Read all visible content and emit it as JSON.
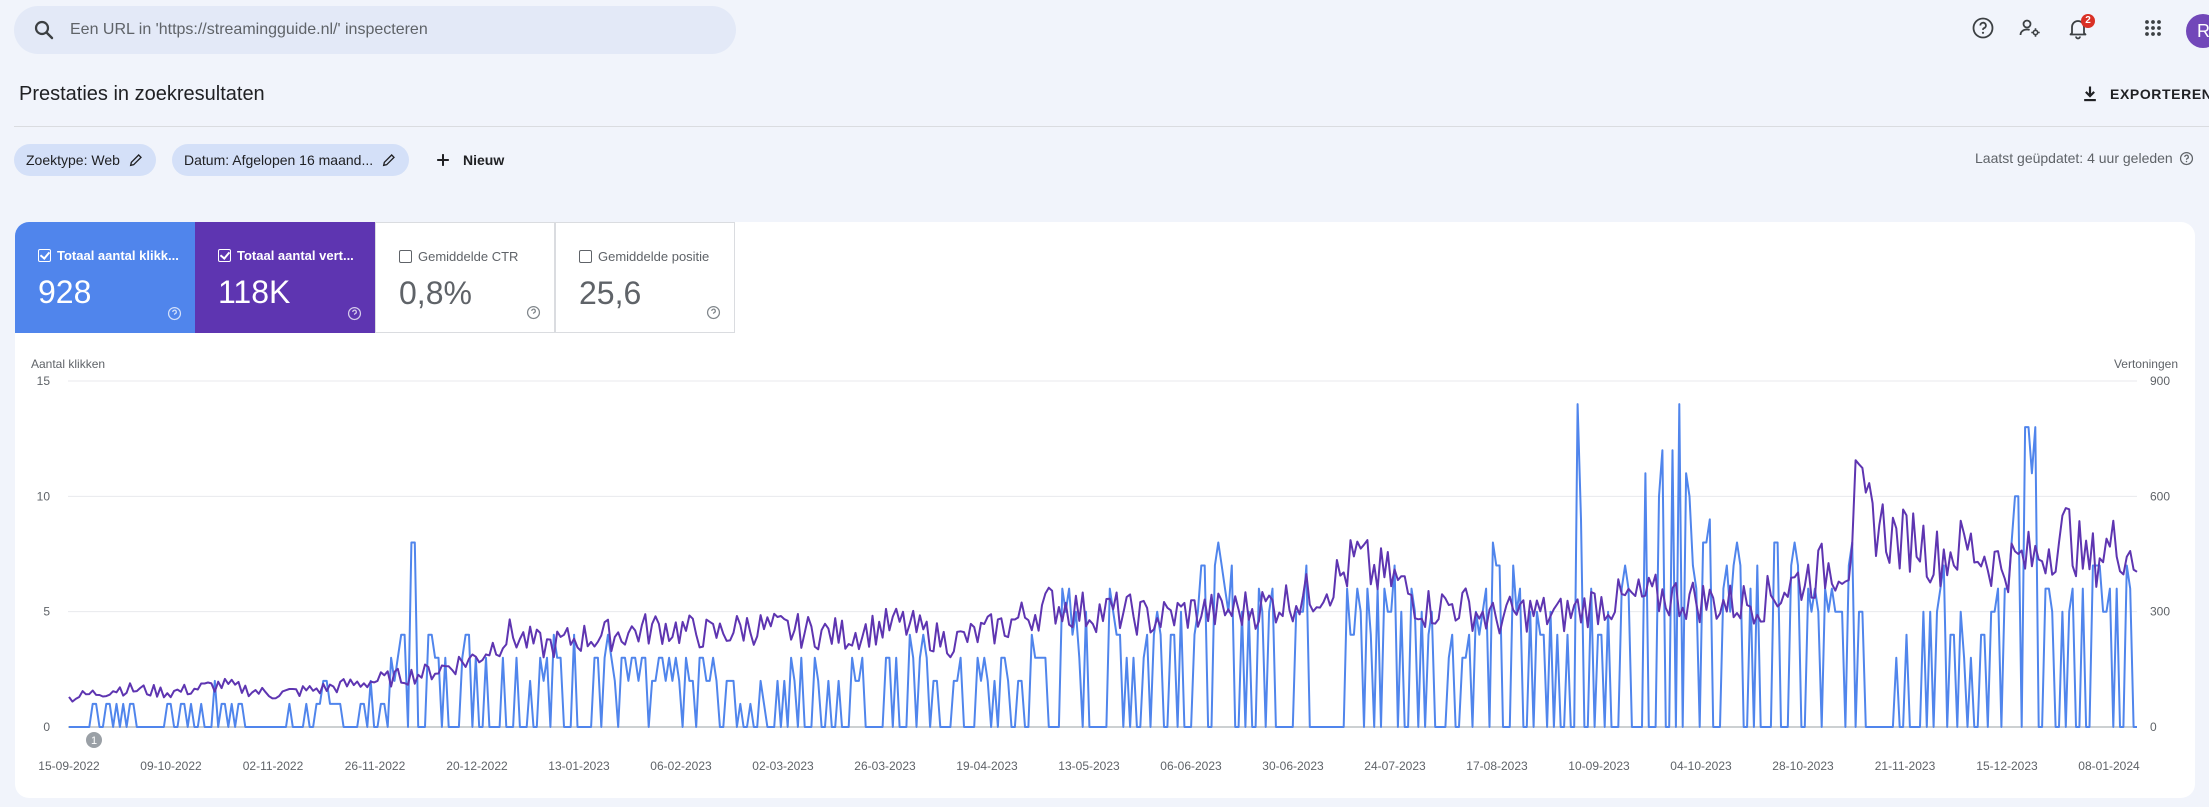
{
  "search": {
    "placeholder": "Een URL in 'https://streamingguide.nl/' inspecteren"
  },
  "header": {
    "notifications_count": "2",
    "avatar_letter": "R"
  },
  "page": {
    "title": "Prestaties in zoekresultaten",
    "export_label": "EXPORTEREN"
  },
  "filters": {
    "chips": [
      {
        "label": "Zoektype: Web"
      },
      {
        "label": "Datum: Afgelopen 16 maand..."
      }
    ],
    "new_label": "Nieuw",
    "updated": "Laatst geüpdatet: 4 uur geleden"
  },
  "metrics": [
    {
      "label": "Totaal aantal klikk...",
      "value": "928",
      "color": "#5085ec",
      "checked": true
    },
    {
      "label": "Totaal aantal vert...",
      "value": "118K",
      "color": "#5e35b1",
      "checked": true
    },
    {
      "label": "Gemiddelde CTR",
      "value": "0,8%",
      "checked": false
    },
    {
      "label": "Gemiddelde positie",
      "value": "25,6",
      "checked": false
    }
  ],
  "annotation_marker": "1",
  "chart_data": {
    "type": "line",
    "y_left_label": "Aantal klikken",
    "y_right_label": "Vertoningen",
    "y_left_ticks": [
      "15",
      "10",
      "5",
      "0"
    ],
    "y_right_ticks": [
      "900",
      "600",
      "300",
      "0"
    ],
    "ylim_left": [
      0,
      15
    ],
    "ylim_right": [
      0,
      900
    ],
    "grid": true,
    "x_tick_labels": [
      "15-09-2022",
      "09-10-2022",
      "02-11-2022",
      "26-11-2022",
      "20-12-2022",
      "13-01-2023",
      "06-02-2023",
      "02-03-2023",
      "26-03-2023",
      "19-04-2023",
      "13-05-2023",
      "06-06-2023",
      "30-06-2023",
      "24-07-2023",
      "17-08-2023",
      "10-09-2023",
      "04-10-2023",
      "28-10-2023",
      "21-11-2023",
      "15-12-2023",
      "08-01-2024"
    ],
    "series": [
      {
        "name": "Totaal aantal klikken",
        "axis": "left",
        "color": "#5085ec",
        "anchors_day_value": [
          [
            0,
            0
          ],
          [
            15,
            1
          ],
          [
            24,
            0
          ],
          [
            34,
            1
          ],
          [
            48,
            1
          ],
          [
            60,
            0
          ],
          [
            73,
            1
          ],
          [
            90,
            1
          ],
          [
            97,
            2
          ],
          [
            100,
            6
          ],
          [
            110,
            2
          ],
          [
            120,
            3
          ],
          [
            135,
            2
          ],
          [
            150,
            3
          ],
          [
            170,
            2
          ],
          [
            180,
            2
          ],
          [
            190,
            2
          ],
          [
            200,
            1
          ],
          [
            219,
            2
          ],
          [
            230,
            2
          ],
          [
            240,
            2
          ],
          [
            250,
            3
          ],
          [
            257,
            1
          ],
          [
            264,
            2
          ],
          [
            280,
            2
          ],
          [
            295,
            4
          ],
          [
            304,
            3
          ],
          [
            310,
            4
          ],
          [
            315,
            3
          ],
          [
            320,
            4
          ],
          [
            330,
            4
          ],
          [
            340,
            5
          ],
          [
            350,
            4
          ],
          [
            360,
            5
          ],
          [
            375,
            4
          ],
          [
            390,
            5
          ],
          [
            400,
            4
          ],
          [
            410,
            3
          ],
          [
            420,
            5
          ],
          [
            430,
            4
          ],
          [
            442,
            4
          ],
          [
            445,
            9
          ],
          [
            450,
            3
          ],
          [
            460,
            5
          ],
          [
            467,
            8
          ],
          [
            475,
            14
          ],
          [
            480,
            4
          ],
          [
            485,
            8
          ],
          [
            490,
            5
          ],
          [
            500,
            5
          ],
          [
            510,
            5
          ],
          [
            520,
            4
          ],
          [
            530,
            6
          ],
          [
            540,
            3
          ],
          [
            550,
            5
          ],
          [
            560,
            3
          ],
          [
            570,
            4
          ],
          [
            578,
            10
          ],
          [
            585,
            3
          ],
          [
            590,
            4
          ],
          [
            600,
            5
          ],
          [
            610,
            5
          ]
        ]
      },
      {
        "name": "Totaal aantal vertoningen",
        "axis": "right",
        "color": "#5e35b1",
        "anchors_day_value": [
          [
            0,
            75
          ],
          [
            15,
            100
          ],
          [
            30,
            90
          ],
          [
            45,
            110
          ],
          [
            60,
            85
          ],
          [
            75,
            100
          ],
          [
            90,
            120
          ],
          [
            105,
            140
          ],
          [
            120,
            180
          ],
          [
            130,
            240
          ],
          [
            140,
            210
          ],
          [
            150,
            230
          ],
          [
            160,
            240
          ],
          [
            175,
            260
          ],
          [
            190,
            240
          ],
          [
            200,
            260
          ],
          [
            215,
            250
          ],
          [
            230,
            240
          ],
          [
            245,
            270
          ],
          [
            260,
            220
          ],
          [
            275,
            260
          ],
          [
            290,
            320
          ],
          [
            300,
            300
          ],
          [
            310,
            300
          ],
          [
            320,
            280
          ],
          [
            330,
            300
          ],
          [
            340,
            300
          ],
          [
            350,
            310
          ],
          [
            365,
            340
          ],
          [
            375,
            390
          ],
          [
            380,
            440
          ],
          [
            385,
            400
          ],
          [
            390,
            390
          ],
          [
            400,
            310
          ],
          [
            410,
            320
          ],
          [
            420,
            280
          ],
          [
            430,
            300
          ],
          [
            440,
            290
          ],
          [
            450,
            320
          ],
          [
            460,
            330
          ],
          [
            470,
            340
          ],
          [
            480,
            330
          ],
          [
            490,
            320
          ],
          [
            500,
            330
          ],
          [
            510,
            380
          ],
          [
            520,
            420
          ],
          [
            525,
            430
          ],
          [
            527,
            600
          ],
          [
            530,
            560
          ],
          [
            535,
            520
          ],
          [
            540,
            480
          ],
          [
            545,
            500
          ],
          [
            550,
            440
          ],
          [
            560,
            470
          ],
          [
            570,
            420
          ],
          [
            580,
            440
          ],
          [
            585,
            480
          ],
          [
            590,
            510
          ],
          [
            595,
            420
          ],
          [
            600,
            460
          ],
          [
            605,
            480
          ],
          [
            610,
            440
          ]
        ]
      }
    ]
  },
  "colors": {
    "accent_blue": "#5085ec",
    "accent_purple": "#5e35b1",
    "search_bg": "#e3e9f7",
    "chip_bg": "#d4e0f8",
    "badge_red": "#d93025"
  },
  "icons": [
    "search-icon",
    "help-icon",
    "manage-accounts-icon",
    "bell-icon",
    "apps-grid-icon",
    "download-icon",
    "edit-pencil-icon",
    "plus-icon",
    "checkbox-icon",
    "help-circle-icon"
  ]
}
